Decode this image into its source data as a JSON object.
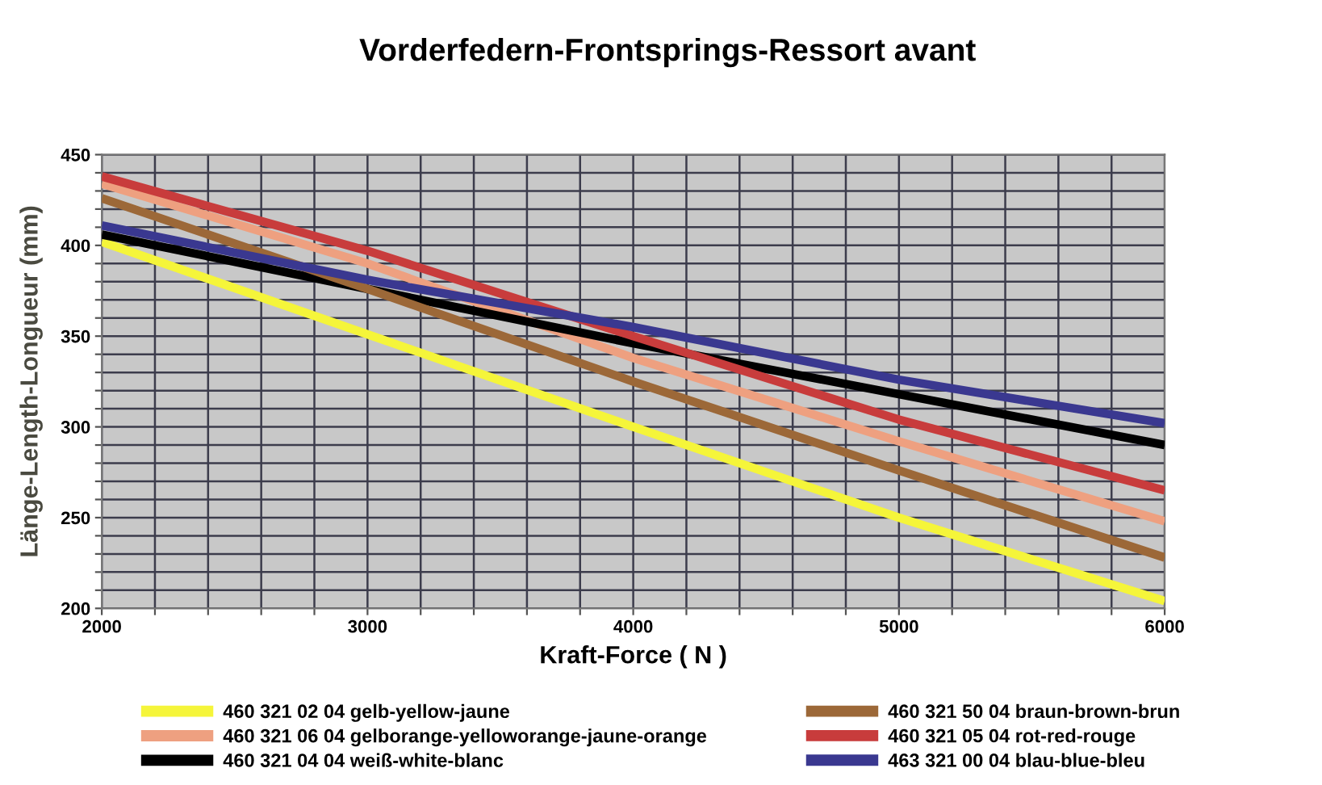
{
  "chart_data": {
    "type": "line",
    "title": "Vorderfedern-Frontsprings-Ressort avant",
    "xlabel": "Kraft-Force ( N )",
    "ylabel": "Länge-Length-Longueur (mm)",
    "x": [
      2000,
      3000,
      4000,
      5000,
      6000
    ],
    "series": [
      {
        "name": "460 321 02 04 gelb-yellow-jaune",
        "color": "#f5f53a",
        "values": [
          402,
          351,
          300,
          250,
          204
        ]
      },
      {
        "name": "460 321 06 04 gelborange-yelloworange-jaune-orange",
        "color": "#eea080",
        "values": [
          434,
          390,
          338,
          292,
          248
        ]
      },
      {
        "name": "460 321 04 04 weiß-white-blanc",
        "color": "#000000",
        "values": [
          406,
          376,
          346,
          318,
          290
        ]
      },
      {
        "name": "460 321 50 04 braun-brown-brun",
        "color": "#9c6838",
        "values": [
          426,
          376,
          325,
          276,
          228
        ]
      },
      {
        "name": "460 321 05 04 rot-red-rouge",
        "color": "#c83c3c",
        "values": [
          438,
          397,
          350,
          304,
          265
        ]
      },
      {
        "name": "463 321 00 04 blau-blue-bleu",
        "color": "#3a3890",
        "values": [
          411,
          381,
          355,
          326,
          302
        ]
      }
    ],
    "xlim": [
      2000,
      6000
    ],
    "ylim": [
      200,
      450
    ],
    "xticks": [
      2000,
      {
        "value": 2200,
        "label": null
      },
      {
        "value": 2400,
        "label": null
      },
      {
        "value": 2600,
        "label": null
      },
      {
        "value": 2800,
        "label": null
      },
      3000,
      {
        "value": 3200,
        "label": null
      },
      {
        "value": 3400,
        "label": null
      },
      {
        "value": 3600,
        "label": null
      },
      {
        "value": 3800,
        "label": null
      },
      4000,
      {
        "value": 4200,
        "label": null
      },
      {
        "value": 4400,
        "label": null
      },
      {
        "value": 4600,
        "label": null
      },
      {
        "value": 4800,
        "label": null
      },
      5000,
      {
        "value": 5200,
        "label": null
      },
      {
        "value": 5400,
        "label": null
      },
      {
        "value": 5600,
        "label": null
      },
      {
        "value": 5800,
        "label": null
      },
      6000
    ],
    "yticks": [
      200,
      {
        "value": 210,
        "label": null
      },
      {
        "value": 220,
        "label": null
      },
      {
        "value": 230,
        "label": null
      },
      {
        "value": 240,
        "label": null
      },
      250,
      {
        "value": 260,
        "label": null
      },
      {
        "value": 270,
        "label": null
      },
      {
        "value": 280,
        "label": null
      },
      {
        "value": 290,
        "label": null
      },
      300,
      {
        "value": 310,
        "label": null
      },
      {
        "value": 320,
        "label": null
      },
      {
        "value": 330,
        "label": null
      },
      {
        "value": 340,
        "label": null
      },
      350,
      {
        "value": 360,
        "label": null
      },
      {
        "value": 370,
        "label": null
      },
      {
        "value": 380,
        "label": null
      },
      {
        "value": 390,
        "label": null
      },
      400,
      {
        "value": 410,
        "label": null
      },
      {
        "value": 420,
        "label": null
      },
      {
        "value": 430,
        "label": null
      },
      {
        "value": 440,
        "label": null
      },
      450
    ],
    "grid": true,
    "legend": "bottom"
  }
}
